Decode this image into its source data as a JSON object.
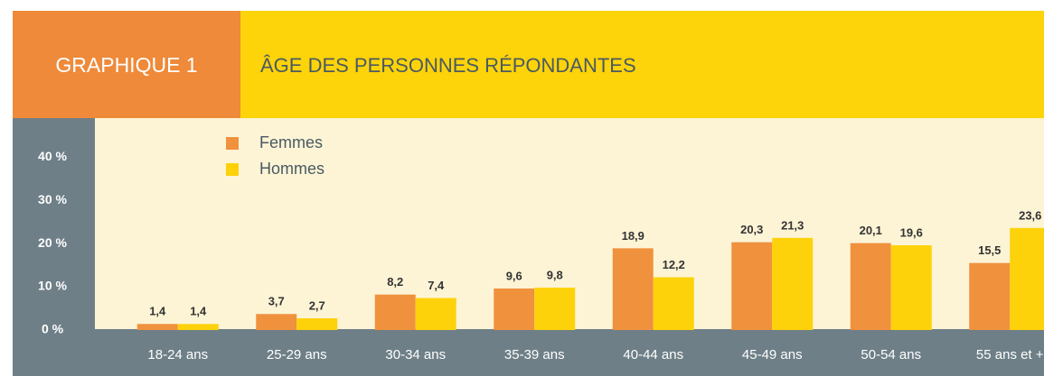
{
  "chart_data": {
    "type": "bar",
    "label": "GRAPHIQUE 1",
    "title": "ÂGE DES PERSONNES RÉPONDANTES",
    "categories": [
      "18-24 ans",
      "25-29 ans",
      "30-34 ans",
      "35-39 ans",
      "40-44 ans",
      "45-49 ans",
      "50-54 ans",
      "55 ans et +"
    ],
    "series": [
      {
        "name": "Femmes",
        "color": "#f0913e",
        "values": [
          1.4,
          3.7,
          8.2,
          9.6,
          18.9,
          20.3,
          20.1,
          15.5
        ],
        "value_labels": [
          "1,4",
          "3,7",
          "8,2",
          "9,6",
          "18,9",
          "20,3",
          "20,1",
          "15,5"
        ]
      },
      {
        "name": "Hommes",
        "color": "#fdd20a",
        "values": [
          1.4,
          2.7,
          7.4,
          9.8,
          12.2,
          21.3,
          19.6,
          23.6
        ],
        "value_labels": [
          "1,4",
          "2,7",
          "7,4",
          "9,8",
          "12,2",
          "21,3",
          "19,6",
          "23,6"
        ]
      }
    ],
    "ylim": [
      0,
      49
    ],
    "yticks": [
      {
        "value": 0,
        "label": "0 %"
      },
      {
        "value": 10,
        "label": "10 %"
      },
      {
        "value": 20,
        "label": "20 %"
      },
      {
        "value": 30,
        "label": "30 %"
      },
      {
        "value": 40,
        "label": "40 %"
      }
    ],
    "legend": "top-left"
  }
}
